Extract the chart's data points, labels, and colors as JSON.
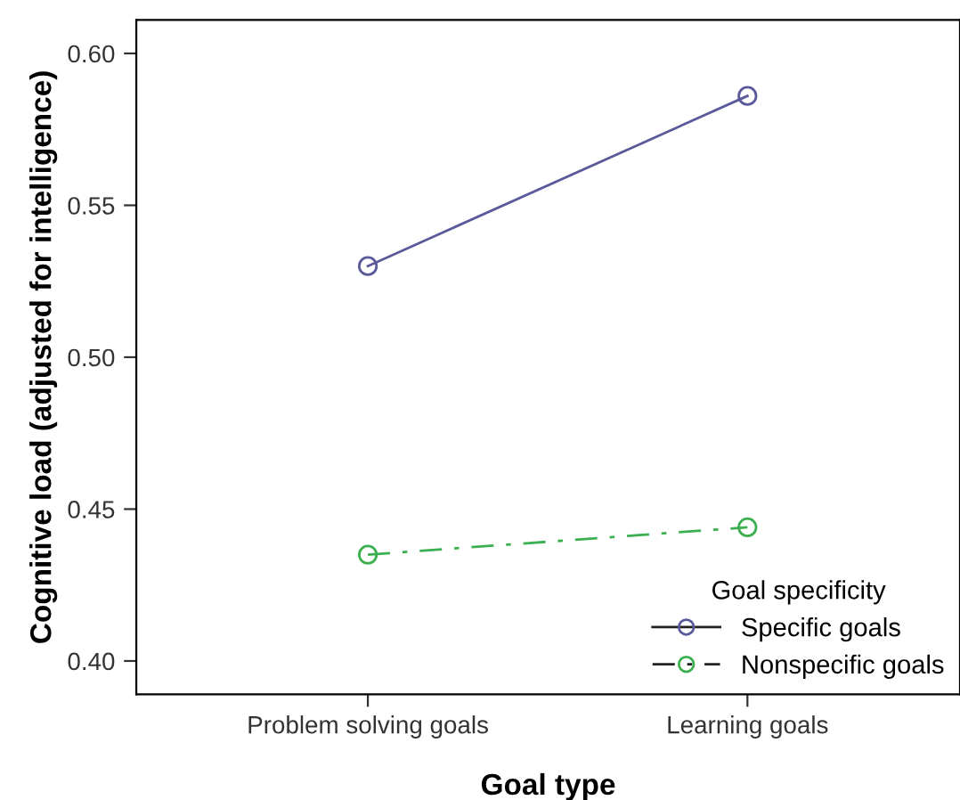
{
  "chart_data": {
    "type": "line",
    "xlabel": "Goal type",
    "ylabel": "Cognitive load (adjusted for intelligence)",
    "legend_title": "Goal specificity",
    "categories": [
      "Problem solving goals",
      "Learning goals"
    ],
    "series": [
      {
        "name": "Specific goals",
        "color": "#5a5a9a",
        "values": [
          0.53,
          0.586
        ],
        "line_style": "solid"
      },
      {
        "name": "Nonspecific goals",
        "color": "#3cb050",
        "values": [
          0.435,
          0.444
        ],
        "line_style": "dashed"
      }
    ],
    "ylim": [
      0.389,
      0.611
    ],
    "yticks": [
      {
        "value": 0.4,
        "label": "0.40"
      },
      {
        "value": 0.45,
        "label": "0.45"
      },
      {
        "value": 0.5,
        "label": "0.50"
      },
      {
        "value": 0.55,
        "label": "0.55"
      },
      {
        "value": 0.6,
        "label": "0.60"
      }
    ],
    "marker": "circle",
    "legend": "bottom right",
    "grid": false
  }
}
